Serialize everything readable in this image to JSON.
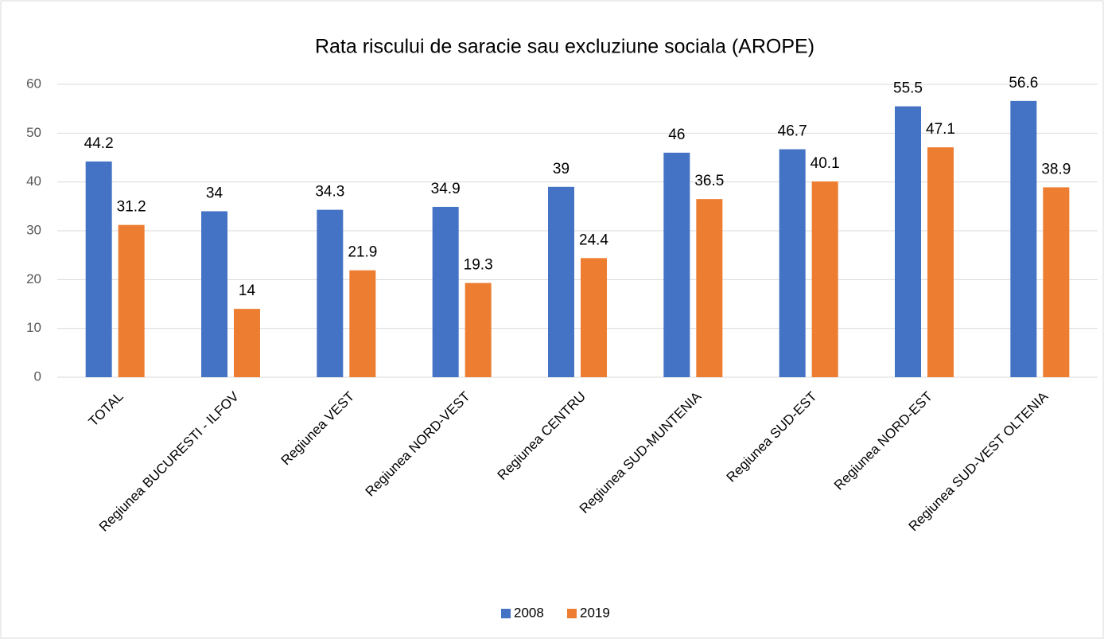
{
  "chart_data": {
    "type": "bar",
    "title": "Rata riscului de saracie sau excluziune sociala (AROPE)",
    "categories": [
      "TOTAL",
      "Regiunea BUCURESTI - ILFOV",
      "Regiunea VEST",
      "Regiunea NORD-VEST",
      "Regiunea CENTRU",
      "Regiunea SUD-MUNTENIA",
      "Regiunea SUD-EST",
      "Regiunea NORD-EST",
      "Regiunea SUD-VEST OLTENIA"
    ],
    "series": [
      {
        "name": "2008",
        "color": "#4472c4",
        "values": [
          44.2,
          34,
          34.3,
          34.9,
          39,
          46,
          46.7,
          55.5,
          56.6
        ]
      },
      {
        "name": "2019",
        "color": "#ed7d31",
        "values": [
          31.2,
          14,
          21.9,
          19.3,
          24.4,
          36.5,
          40.1,
          47.1,
          38.9
        ]
      }
    ],
    "ylim": [
      0,
      60
    ],
    "yticks": [
      0,
      10,
      20,
      30,
      40,
      50,
      60
    ],
    "grid": true,
    "legend": "bottom"
  }
}
